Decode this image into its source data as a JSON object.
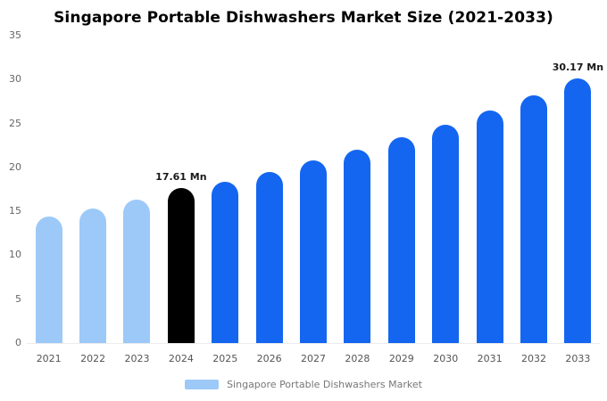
{
  "title": "Singapore Portable Dishwashers Market Size (2021-2033)",
  "legend": {
    "label": "Singapore Portable Dishwashers Market",
    "swatch_color": "#9DC9F8"
  },
  "colors": {
    "historical": "#9DC9F8",
    "base_year": "#000000",
    "forecast": "#1466F0"
  },
  "chart_data": {
    "type": "bar",
    "title": "Singapore Portable Dishwashers Market Size (2021-2033)",
    "xlabel": "",
    "ylabel": "",
    "ylim": [
      0,
      35
    ],
    "yticks": [
      0,
      5,
      10,
      15,
      20,
      25,
      30,
      35
    ],
    "grid": false,
    "legend_position": "bottom",
    "categories": [
      "2021",
      "2022",
      "2023",
      "2024",
      "2025",
      "2026",
      "2027",
      "2028",
      "2029",
      "2030",
      "2031",
      "2032",
      "2033"
    ],
    "values": [
      14.4,
      15.3,
      16.3,
      17.61,
      18.4,
      19.5,
      20.8,
      22.0,
      23.4,
      24.9,
      26.5,
      28.2,
      30.17
    ],
    "bar_colors": [
      "#9DC9F8",
      "#9DC9F8",
      "#9DC9F8",
      "#000000",
      "#1466F0",
      "#1466F0",
      "#1466F0",
      "#1466F0",
      "#1466F0",
      "#1466F0",
      "#1466F0",
      "#1466F0",
      "#1466F0"
    ],
    "annotations": [
      {
        "year": "2024",
        "label": "17.61 Mn"
      },
      {
        "year": "2033",
        "label": "30.17 Mn"
      }
    ]
  }
}
